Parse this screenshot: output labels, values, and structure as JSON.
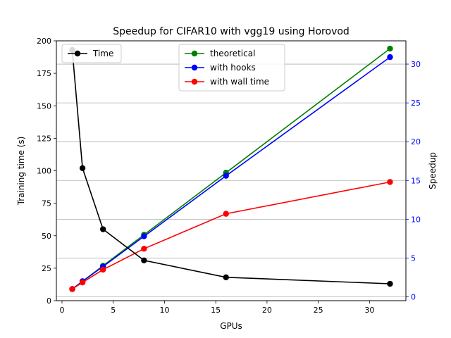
{
  "chart_data": {
    "type": "line",
    "title": "Speedup for CIFAR10 with vgg19 using Horovod",
    "xlabel": "GPUs",
    "ylabel_left": "Training time (s)",
    "ylabel_right": "Speedup",
    "xlim": [
      -0.55,
      33.55
    ],
    "ylim_left": [
      0,
      200
    ],
    "ylim_right": [
      -0.5,
      33.0
    ],
    "x_ticks": [
      0,
      5,
      10,
      15,
      20,
      25,
      30
    ],
    "y_left_ticks": [
      0,
      25,
      50,
      75,
      100,
      125,
      150,
      175,
      200
    ],
    "y_right_ticks": [
      0,
      5,
      10,
      15,
      20,
      25,
      30
    ],
    "grid": "horizontal lines at right-axis ticks",
    "legend_left_placement": "top-left",
    "legend_right_placement": "top-center",
    "colors": {
      "right_axis": "#0000ff"
    },
    "left_series": [
      {
        "name": "Time",
        "color": "#000000",
        "x": [
          1,
          2,
          4,
          8,
          16,
          32
        ],
        "y": [
          193,
          102,
          55,
          31,
          18,
          13
        ]
      }
    ],
    "right_series": [
      {
        "name": "theoretical",
        "color": "#008000",
        "x": [
          1,
          2,
          4,
          8,
          16,
          32
        ],
        "y": [
          1,
          2,
          4,
          8,
          16,
          32
        ]
      },
      {
        "name": "with hooks",
        "color": "#0000ff",
        "x": [
          1,
          2,
          4,
          8,
          16,
          32
        ],
        "y": [
          1,
          2,
          3.9,
          7.8,
          15.6,
          30.9
        ]
      },
      {
        "name": "with wall time",
        "color": "#ff0000",
        "x": [
          1,
          2,
          4,
          8,
          16,
          32
        ],
        "y": [
          1,
          1.85,
          3.5,
          6.2,
          10.7,
          14.8
        ]
      }
    ]
  }
}
